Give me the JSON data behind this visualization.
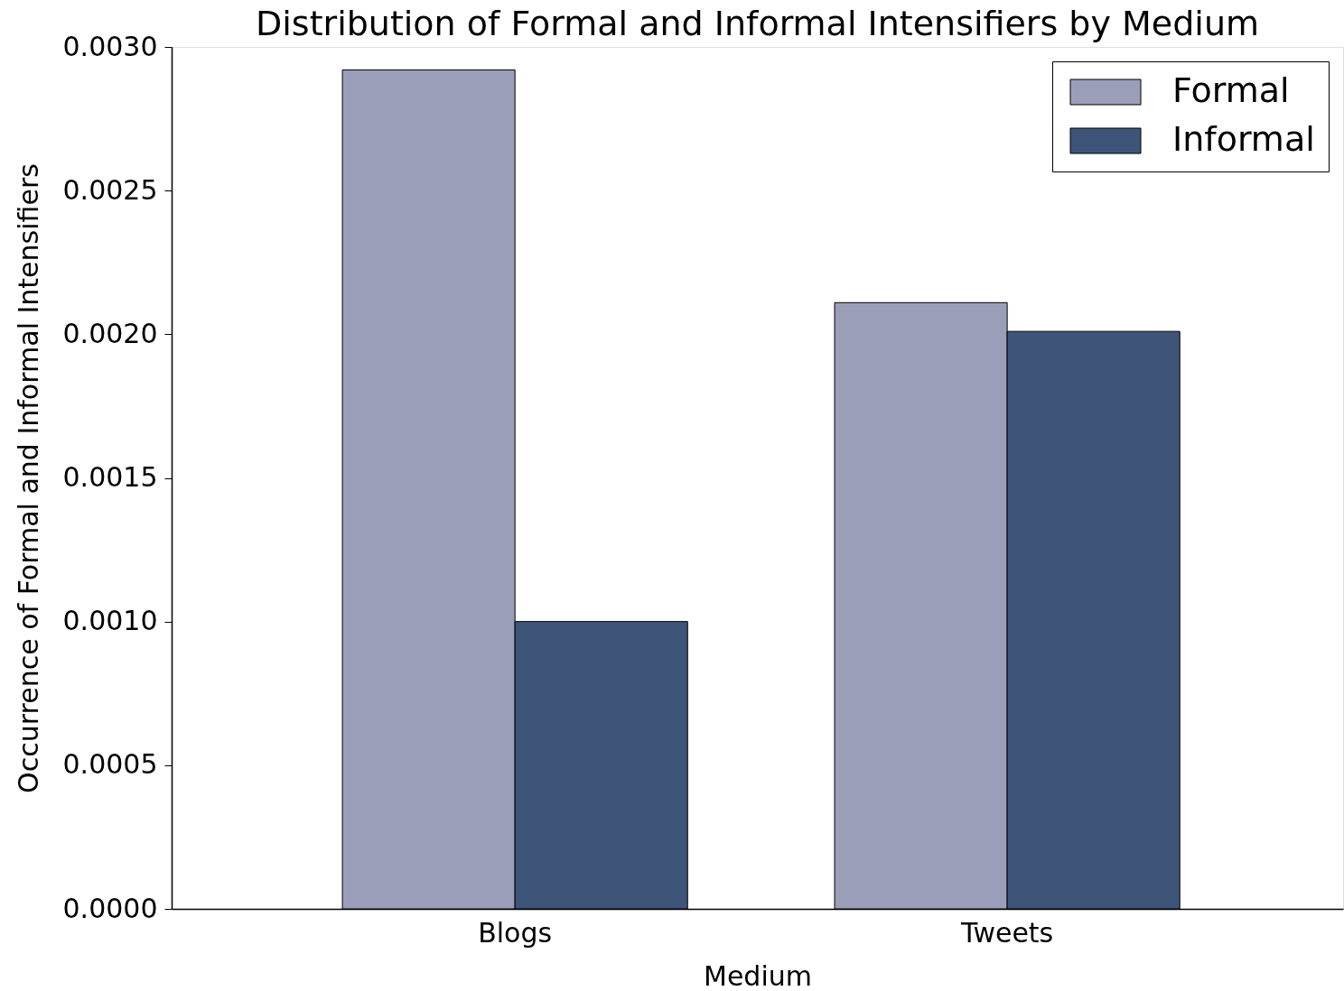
{
  "chart_data": {
    "type": "bar",
    "title": "Distribution of Formal and Informal Intensifiers by Medium",
    "xlabel": "Medium",
    "ylabel": "Occurrence of Formal and Informal Intensifiers",
    "categories": [
      "Blogs",
      "Tweets"
    ],
    "series": [
      {
        "name": "Formal",
        "color": "#9a9eb9",
        "values": [
          0.00292,
          0.00211
        ]
      },
      {
        "name": "Informal",
        "color": "#3e5579",
        "values": [
          0.001,
          0.00201
        ]
      }
    ],
    "ylim": [
      0,
      0.003
    ],
    "yticks": [
      {
        "value": 0,
        "label": "0.0000"
      },
      {
        "value": 0.0005,
        "label": "0.0005"
      },
      {
        "value": 0.001,
        "label": "0.0010"
      },
      {
        "value": 0.0015,
        "label": "0.0015"
      },
      {
        "value": 0.002,
        "label": "0.0020"
      },
      {
        "value": 0.0025,
        "label": "0.0025"
      },
      {
        "value": 0.003,
        "label": "0.0030"
      }
    ],
    "legend": "top right"
  }
}
